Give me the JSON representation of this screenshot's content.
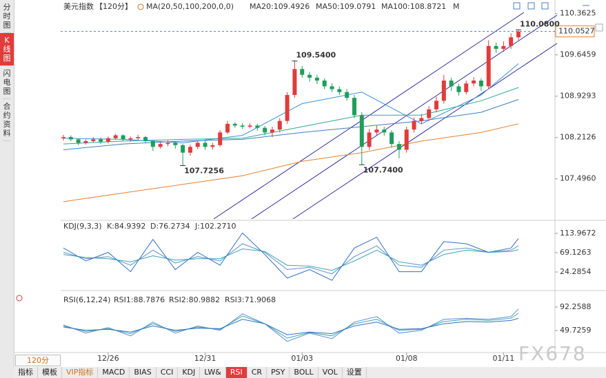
{
  "ui": {
    "sidebar": [
      "分时图",
      "K线图",
      "闪电图",
      "合约资料"
    ],
    "period": "120分",
    "tabs": [
      "指标",
      "模板",
      "VIP指标",
      "MACD",
      "BIAS",
      "CCI",
      "KDJ",
      "LW&",
      "RSI",
      "CR",
      "PSY",
      "BOLL",
      "VOL",
      "设置"
    ],
    "watermark": "FX678"
  },
  "chart_data": [
    {
      "type": "candlestick",
      "title": "美元指数",
      "subtitle": "【120分】",
      "ma_label": "MA(20,50,100,200,0,0)",
      "xlim": [
        0,
        61
      ],
      "ylim": [
        106.8,
        110.43
      ],
      "yticks": [
        110.3625,
        109.6459,
        108.9293,
        108.2126,
        {
          "value": 107.496,
          "label": "107.4960"
        }
      ],
      "up_color": "#e03c3c",
      "down_color": "#1e9e5a",
      "open": [
        108.2,
        108.22,
        108.18,
        108.12,
        108.15,
        108.18,
        108.14,
        108.2,
        108.25,
        108.18,
        108.2,
        108.22,
        108.15,
        108.05,
        108.1,
        108.12,
        108.08,
        107.95,
        108.05,
        108.12,
        108.05,
        108.08,
        108.3,
        108.45,
        108.42,
        108.4,
        108.42,
        108.38,
        108.3,
        108.35,
        108.5,
        108.95,
        109.4,
        109.3,
        109.25,
        109.2,
        109.1,
        109.05,
        109.0,
        108.9,
        108.6,
        108.05,
        108.3,
        108.35,
        108.3,
        108.1,
        108.0,
        108.35,
        108.5,
        108.55,
        108.7,
        108.85,
        109.2,
        109.1,
        109.0,
        109.15,
        109.2,
        109.1,
        109.8,
        109.75,
        109.8,
        109.95
      ],
      "high": [
        108.26,
        108.25,
        108.2,
        108.18,
        108.22,
        108.21,
        108.23,
        108.28,
        108.27,
        108.23,
        108.26,
        108.24,
        108.17,
        108.14,
        108.16,
        108.15,
        108.1,
        108.09,
        108.16,
        108.15,
        108.12,
        108.34,
        108.5,
        108.48,
        108.46,
        108.46,
        108.45,
        108.41,
        108.4,
        108.55,
        109.0,
        109.54,
        109.45,
        109.35,
        109.3,
        109.24,
        109.15,
        109.1,
        109.05,
        108.95,
        108.65,
        108.36,
        108.42,
        108.4,
        108.34,
        108.15,
        108.4,
        108.56,
        108.62,
        108.76,
        108.92,
        109.3,
        109.25,
        109.14,
        109.2,
        109.26,
        109.24,
        109.9,
        109.86,
        109.88,
        110.02,
        110.08
      ],
      "low": [
        108.16,
        108.15,
        108.08,
        108.09,
        108.12,
        108.1,
        108.11,
        108.17,
        108.15,
        108.14,
        108.17,
        108.12,
        107.98,
        108.02,
        108.06,
        108.02,
        107.7256,
        107.9,
        108.01,
        108.0,
        108.0,
        108.05,
        108.27,
        108.38,
        108.36,
        108.37,
        108.33,
        108.25,
        108.22,
        108.3,
        108.45,
        108.9,
        109.25,
        109.18,
        109.14,
        109.05,
        109.0,
        108.95,
        108.85,
        108.55,
        107.74,
        108.0,
        108.25,
        108.24,
        108.04,
        107.85,
        107.95,
        108.3,
        108.44,
        108.5,
        108.65,
        108.8,
        109.02,
        108.94,
        108.96,
        109.1,
        109.02,
        109.05,
        109.68,
        109.7,
        109.75,
        109.9
      ],
      "close": [
        108.22,
        108.18,
        108.12,
        108.15,
        108.18,
        108.14,
        108.2,
        108.25,
        108.18,
        108.2,
        108.22,
        108.15,
        108.05,
        108.1,
        108.12,
        108.08,
        107.95,
        108.05,
        108.12,
        108.05,
        108.08,
        108.3,
        108.45,
        108.42,
        108.4,
        108.42,
        108.38,
        108.3,
        108.35,
        108.5,
        108.95,
        109.4,
        109.3,
        109.25,
        109.2,
        109.1,
        109.05,
        109.0,
        108.9,
        108.6,
        108.05,
        108.3,
        108.35,
        108.3,
        108.1,
        108.0,
        108.35,
        108.5,
        108.55,
        108.7,
        108.85,
        109.2,
        109.1,
        109.0,
        109.15,
        109.2,
        109.1,
        109.8,
        109.75,
        109.8,
        109.95,
        110.05
      ],
      "last": 110.0527,
      "annotations": [
        {
          "label": "109.5400",
          "value": 109.54,
          "x": 31,
          "color": "#e03c3c"
        },
        {
          "label": "107.7256",
          "value": 107.7256,
          "x": 16,
          "color": "#2e9e5a"
        },
        {
          "label": "107.7400",
          "value": 107.74,
          "x": 40,
          "color": "#2e9e5a"
        },
        {
          "label": "110.0800",
          "value": 110.08,
          "x": 61,
          "color": "#e03c3c"
        }
      ],
      "series": [
        {
          "name": "MA20:109.4926",
          "color": "#3b8fd9",
          "x": [
            0,
            8,
            16,
            24,
            32,
            40,
            48,
            56,
            61
          ],
          "values": [
            108.2,
            108.18,
            108.12,
            108.25,
            108.8,
            109.0,
            108.45,
            108.95,
            109.4926
          ]
        },
        {
          "name": "MA50:109.0791",
          "color": "#2aa59a",
          "x": [
            0,
            8,
            16,
            24,
            32,
            40,
            48,
            56,
            61
          ],
          "values": [
            108.1,
            108.15,
            108.18,
            108.2,
            108.4,
            108.6,
            108.6,
            108.85,
            109.0791
          ]
        },
        {
          "name": "MA100:108.8721",
          "color": "#3a7fc0",
          "x": [
            0,
            8,
            16,
            24,
            32,
            40,
            48,
            56,
            61
          ],
          "values": [
            108.0,
            108.1,
            108.15,
            108.18,
            108.3,
            108.4,
            108.5,
            108.65,
            108.8721
          ]
        },
        {
          "name": "M",
          "color": "#e08030",
          "x": [
            0,
            8,
            16,
            24,
            32,
            40,
            48,
            56,
            61
          ],
          "values": [
            107.1,
            107.25,
            107.4,
            107.55,
            107.8,
            107.95,
            108.15,
            108.3,
            108.45
          ]
        }
      ]
    },
    {
      "type": "line",
      "title": "KDJ(9,3,3)",
      "xlim": [
        0,
        61
      ],
      "ylim": [
        -15.7,
        141.2
      ],
      "yticks": [
        113.9672,
        69.1263,
        24.2854
      ],
      "x": [
        0,
        3,
        6,
        9,
        12,
        15,
        18,
        21,
        24,
        27,
        30,
        33,
        36,
        39,
        42,
        45,
        48,
        51,
        54,
        57,
        60,
        61
      ],
      "series": [
        {
          "name": "K:84.9392",
          "color": "#5b8fd0",
          "values": [
            70,
            55,
            60,
            40,
            75,
            45,
            60,
            50,
            90,
            70,
            30,
            35,
            20,
            60,
            85,
            40,
            35,
            75,
            80,
            70,
            75,
            84.9392
          ]
        },
        {
          "name": "D:76.2734",
          "color": "#3aa3b0",
          "values": [
            65,
            58,
            55,
            48,
            62,
            52,
            55,
            55,
            78,
            72,
            40,
            38,
            28,
            50,
            75,
            48,
            40,
            65,
            75,
            70,
            72,
            76.2734
          ]
        },
        {
          "name": "J:102.2710",
          "color": "#2f6fc0",
          "values": [
            80,
            50,
            70,
            25,
            100,
            30,
            70,
            40,
            115,
            65,
            10,
            30,
            5,
            80,
            105,
            25,
            25,
            95,
            90,
            70,
            80,
            102.271
          ]
        }
      ]
    },
    {
      "type": "line",
      "title": "RSI(6,12,24)",
      "xlim": [
        0,
        61
      ],
      "ylim": [
        12.2,
        118.5
      ],
      "yticks": [
        92.2588,
        49.7259
      ],
      "xticks": [
        {
          "value": 6,
          "label": "12/26"
        },
        {
          "value": 19,
          "label": "12/31"
        },
        {
          "value": 32,
          "label": "01/03"
        },
        {
          "value": 46,
          "label": "01/08"
        },
        {
          "value": 59,
          "label": "01/11"
        }
      ],
      "x": [
        0,
        3,
        6,
        9,
        12,
        15,
        18,
        21,
        24,
        27,
        30,
        33,
        36,
        39,
        42,
        45,
        48,
        51,
        54,
        57,
        60,
        61
      ],
      "series": [
        {
          "name": "RSI1:88.7876",
          "color": "#5b8fd0",
          "values": [
            60,
            45,
            55,
            40,
            65,
            45,
            58,
            50,
            80,
            62,
            30,
            45,
            35,
            65,
            75,
            45,
            50,
            70,
            72,
            70,
            75,
            88.7876
          ]
        },
        {
          "name": "RSI2:80.9882",
          "color": "#3aa3b0",
          "values": [
            58,
            48,
            53,
            44,
            62,
            48,
            56,
            52,
            76,
            62,
            36,
            46,
            40,
            62,
            70,
            50,
            52,
            66,
            70,
            68,
            72,
            80.9882
          ]
        },
        {
          "name": "RSI3:71.9068",
          "color": "#2f6fc0",
          "values": [
            56,
            50,
            52,
            47,
            58,
            50,
            54,
            53,
            70,
            62,
            42,
            47,
            44,
            58,
            65,
            52,
            53,
            62,
            66,
            65,
            68,
            71.9068
          ]
        }
      ]
    }
  ]
}
